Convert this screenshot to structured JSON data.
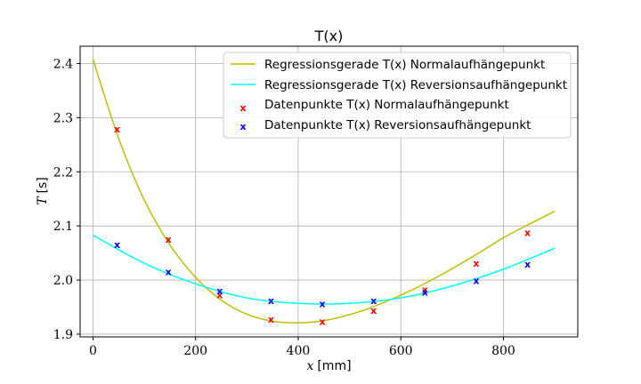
{
  "chart_data": {
    "type": "scatter",
    "title": "T(x)",
    "xlabel_var": "x",
    "xlabel_unit": "[mm]",
    "ylabel_var": "T",
    "ylabel_unit": "[s]",
    "xlim": [
      -25,
      945
    ],
    "ylim": [
      1.895,
      2.432
    ],
    "xticks": [
      0,
      200,
      400,
      600,
      800
    ],
    "yticks": [
      1.9,
      2.0,
      2.1,
      2.2,
      2.3,
      2.4
    ],
    "xtick_labels": [
      "0",
      "200",
      "400",
      "600",
      "800"
    ],
    "ytick_labels": [
      "1.9",
      "2.0",
      "2.1",
      "2.2",
      "2.3",
      "2.4"
    ],
    "grid": true,
    "legend_position": "top-right",
    "series": [
      {
        "name": "Regressionsgerade T(x) Normalaufhängepunkt",
        "kind": "line",
        "color": "#bfbf00",
        "x": [
          0,
          50,
          100,
          150,
          200,
          250,
          300,
          350,
          400,
          450,
          500,
          550,
          600,
          650,
          700,
          750,
          800,
          850,
          900
        ],
        "y": [
          2.408,
          2.262,
          2.148,
          2.065,
          2.005,
          1.963,
          1.937,
          1.924,
          1.921,
          1.925,
          1.936,
          1.952,
          1.972,
          1.995,
          2.021,
          2.049,
          2.078,
          2.103,
          2.127
        ]
      },
      {
        "name": "Regressionsgerade T(x) Reversionsaufhängepunkt",
        "kind": "line",
        "color": "#00ffff",
        "x": [
          0,
          100,
          200,
          300,
          400,
          500,
          600,
          700,
          800,
          900
        ],
        "y": [
          2.083,
          2.031,
          1.993,
          1.967,
          1.957,
          1.957,
          1.967,
          1.989,
          2.02,
          2.059
        ]
      },
      {
        "name": "Datenpunkte T(x) Normalaufhängepunkt",
        "kind": "points",
        "color": "#ff0000",
        "x": [
          47,
          147,
          247,
          347,
          447,
          547,
          647,
          747,
          847
        ],
        "y": [
          2.278,
          2.074,
          1.971,
          1.926,
          1.922,
          1.943,
          1.981,
          2.03,
          2.086
        ]
      },
      {
        "name": "Datenpunkte T(x) Reversionsaufhängepunkt",
        "kind": "points",
        "color": "#0000ff",
        "x": [
          47,
          147,
          247,
          347,
          447,
          547,
          647,
          747,
          847
        ],
        "y": [
          2.064,
          2.014,
          1.979,
          1.961,
          1.955,
          1.961,
          1.976,
          1.998,
          2.028
        ]
      }
    ]
  }
}
